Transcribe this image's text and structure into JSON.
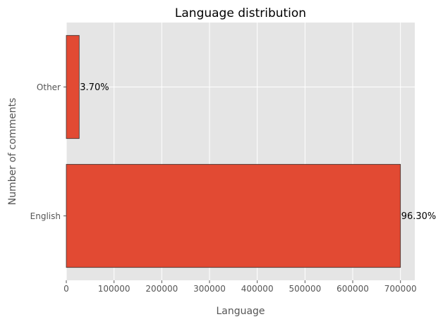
{
  "chart_data": {
    "type": "bar",
    "orientation": "horizontal",
    "title": "Language distribution",
    "xlabel": "Language",
    "ylabel": "Number of comments",
    "categories": [
      "English",
      "Other"
    ],
    "values": [
      700000,
      27000
    ],
    "data_labels": [
      "96.30%",
      "3.70%"
    ],
    "xlim": [
      0,
      730000
    ],
    "xticks": [
      0,
      100000,
      200000,
      300000,
      400000,
      500000,
      600000,
      700000
    ],
    "xtick_labels": [
      "0",
      "100000",
      "200000",
      "300000",
      "400000",
      "500000",
      "600000",
      "700000"
    ],
    "grid": true,
    "style": "ggplot",
    "colors": {
      "bar": "#e24a33",
      "bar_edge": "#333333",
      "plot_background": "#e5e5e5",
      "grid": "#ffffff"
    }
  }
}
